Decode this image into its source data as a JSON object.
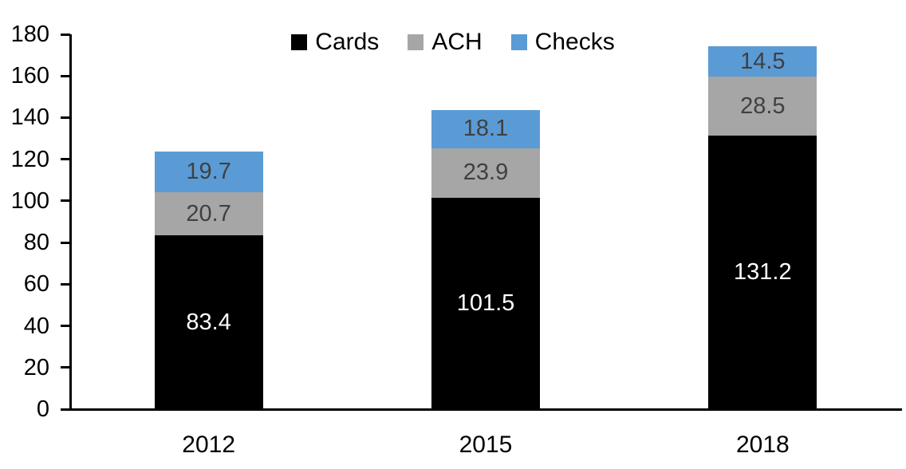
{
  "chart_data": {
    "type": "bar",
    "stacked": true,
    "title": "",
    "xlabel": "",
    "ylabel": "",
    "categories": [
      "2012",
      "2015",
      "2018"
    ],
    "series": [
      {
        "name": "Cards",
        "color": "#000000",
        "label_color": "#FFFFFF",
        "values": [
          83.4,
          101.5,
          131.2
        ]
      },
      {
        "name": "ACH",
        "color": "#A6A6A6",
        "label_color": "#404040",
        "values": [
          20.7,
          23.9,
          28.5
        ]
      },
      {
        "name": "Checks",
        "color": "#5B9BD5",
        "label_color": "#404040",
        "values": [
          19.7,
          18.1,
          14.5
        ]
      }
    ],
    "ylim": [
      0,
      180
    ],
    "yticks": [
      0,
      20,
      40,
      60,
      80,
      100,
      120,
      140,
      160,
      180
    ],
    "grid": false,
    "legend_position": "top-center",
    "axis_color": "#000000",
    "background_color": "#FFFFFF"
  }
}
